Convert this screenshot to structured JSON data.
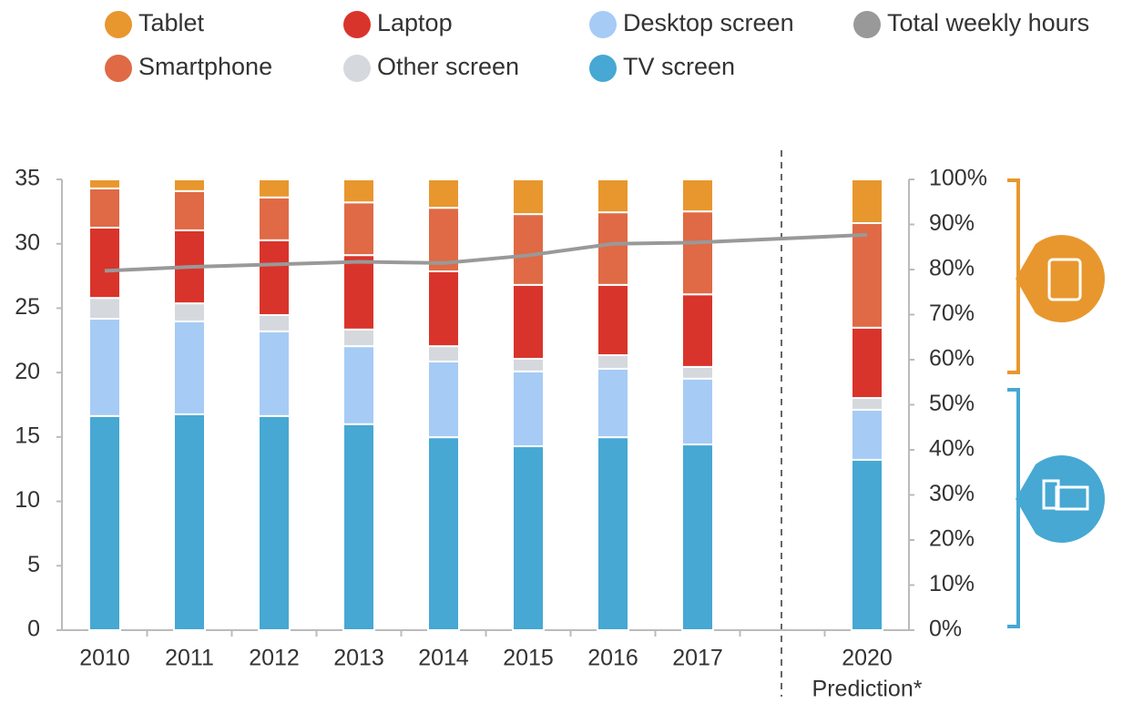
{
  "chart_data": {
    "type": "bar",
    "stacked": true,
    "categories": [
      "2010",
      "2011",
      "2012",
      "2013",
      "2014",
      "2015",
      "2016",
      "2017",
      null,
      "2020"
    ],
    "annotations": [
      "Prediction*"
    ],
    "ylim": [
      0,
      35
    ],
    "yticks": [
      0,
      5,
      10,
      15,
      20,
      25,
      30,
      35
    ],
    "y2lim": [
      0,
      100
    ],
    "y2ticks": [
      {
        "value": 0,
        "label": "0%"
      },
      {
        "value": 10,
        "label": "10%"
      },
      {
        "value": 20,
        "label": "20%"
      },
      {
        "value": 30,
        "label": "30%"
      },
      {
        "value": 40,
        "label": "40%"
      },
      {
        "value": 50,
        "label": "50%"
      },
      {
        "value": 60,
        "label": "60%"
      },
      {
        "value": 70,
        "label": "70%"
      },
      {
        "value": 80,
        "label": "80%"
      },
      {
        "value": 90,
        "label": "90%"
      },
      {
        "value": 100,
        "label": "100%"
      }
    ],
    "series": [
      {
        "name": "TV screen",
        "color": "#46a8d3",
        "axis": "y2",
        "values": [
          47.5,
          47.9,
          47.5,
          45.7,
          42.8,
          40.8,
          42.8,
          41.2,
          null,
          37.8
        ]
      },
      {
        "name": "Desktop screen",
        "color": "#a6cbf5",
        "axis": "y2",
        "values": [
          21.6,
          20.6,
          18.8,
          17.3,
          16.8,
          16.6,
          15.2,
          14.6,
          null,
          11.1
        ]
      },
      {
        "name": "Other screen",
        "color": "#d5d9dd",
        "axis": "y2",
        "values": [
          4.6,
          4.0,
          3.6,
          3.7,
          3.4,
          2.8,
          3.0,
          2.6,
          null,
          2.6
        ]
      },
      {
        "name": "Laptop",
        "color": "#d9342b",
        "axis": "y2",
        "values": [
          15.6,
          16.2,
          16.6,
          16.5,
          16.6,
          16.4,
          15.6,
          16.1,
          null,
          15.6
        ]
      },
      {
        "name": "Smartphone",
        "color": "#df6a45",
        "axis": "y2",
        "values": [
          8.7,
          8.7,
          9.5,
          11.7,
          14.1,
          15.7,
          16.1,
          18.4,
          null,
          23.2
        ]
      },
      {
        "name": "Tablet",
        "color": "#e8972e",
        "axis": "y2",
        "values": [
          2.0,
          2.6,
          4.0,
          5.1,
          6.3,
          7.7,
          7.3,
          7.1,
          null,
          9.7
        ]
      },
      {
        "name": "Total weekly hours",
        "color": "#999999",
        "type": "line",
        "values": [
          27.9,
          28.2,
          28.4,
          28.6,
          28.5,
          29.1,
          30.0,
          30.1,
          30.4,
          30.7
        ]
      }
    ]
  }
}
